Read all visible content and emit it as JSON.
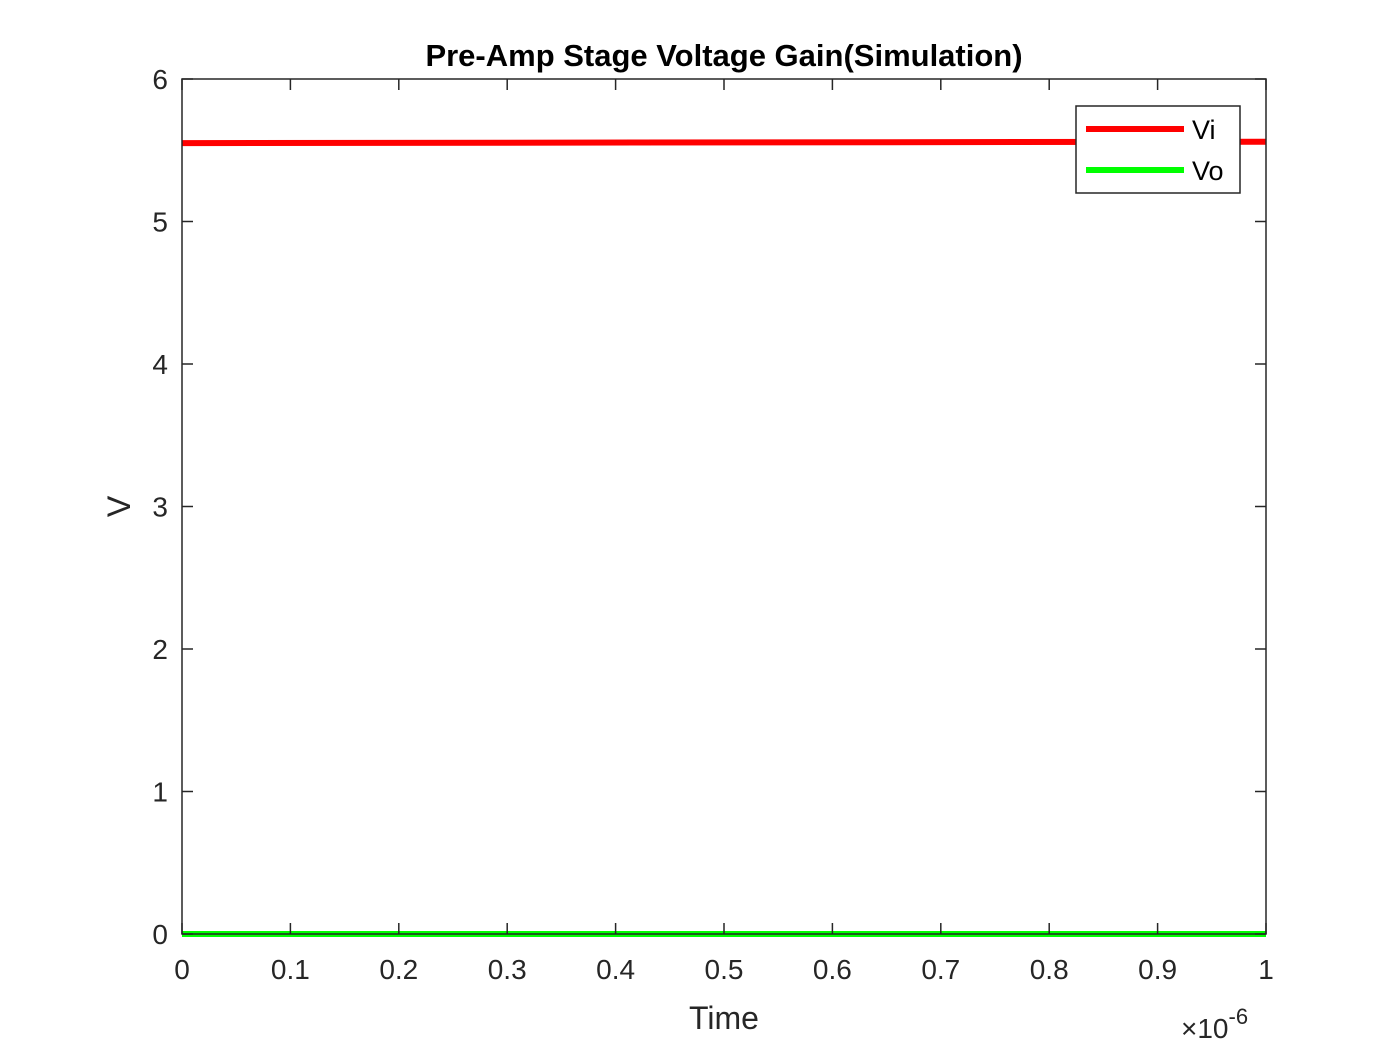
{
  "chart_data": {
    "type": "line",
    "title": "Pre-Amp Stage Voltage Gain(Simulation)",
    "xlabel": "Time",
    "ylabel": "V",
    "x_exponent_label": {
      "base": "×10",
      "exponent": "-6"
    },
    "xlim": [
      0,
      1
    ],
    "ylim": [
      0,
      6
    ],
    "x_scale_factor": 1e-06,
    "x_ticks": [
      0,
      0.1,
      0.2,
      0.3,
      0.4,
      0.5,
      0.6,
      0.7,
      0.8,
      0.9,
      1
    ],
    "x_tick_labels": [
      "0",
      "0.1",
      "0.2",
      "0.3",
      "0.4",
      "0.5",
      "0.6",
      "0.7",
      "0.8",
      "0.9",
      "1"
    ],
    "y_ticks": [
      0,
      1,
      2,
      3,
      4,
      5,
      6
    ],
    "y_tick_labels": [
      "0",
      "1",
      "2",
      "3",
      "4",
      "5",
      "6"
    ],
    "grid": false,
    "legend_position": "top-right",
    "series": [
      {
        "name": "Vi",
        "color": "#ff0000",
        "x": [
          0,
          1
        ],
        "y": [
          5.55,
          5.56
        ]
      },
      {
        "name": "Vo",
        "color": "#00ff00",
        "x": [
          0,
          1
        ],
        "y": [
          0,
          0
        ]
      }
    ]
  }
}
